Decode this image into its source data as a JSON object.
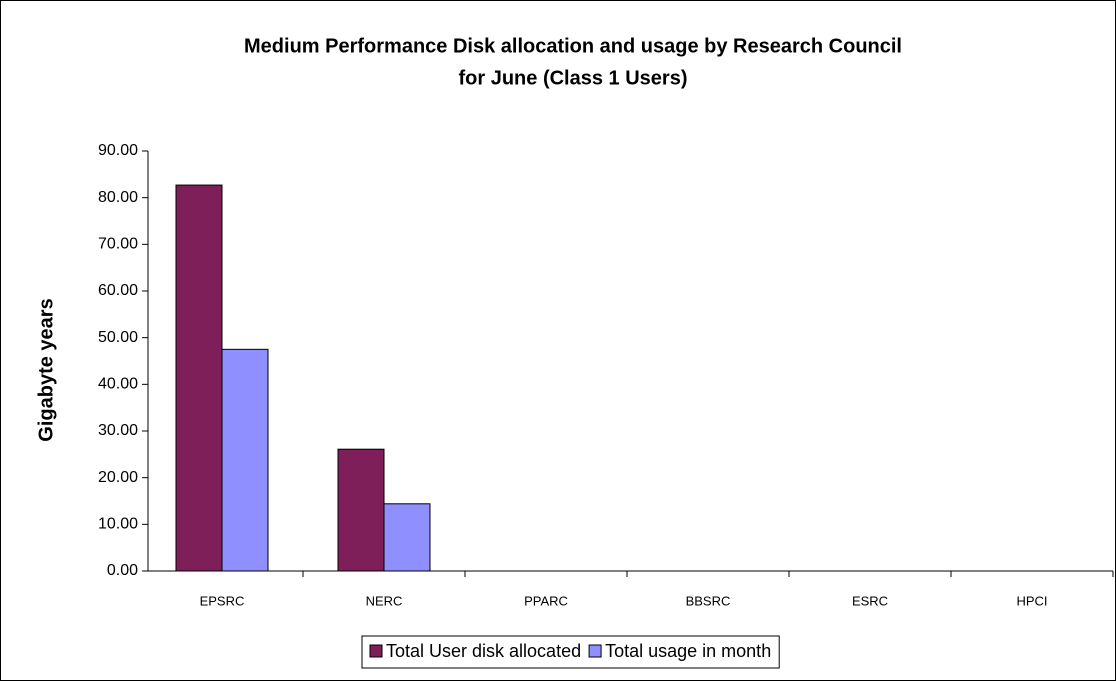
{
  "chart_data": {
    "type": "bar",
    "title": [
      "Medium Performance Disk allocation and usage by Research Council",
      "for June (Class 1 Users)"
    ],
    "y_label": "Gigabyte years",
    "categories": [
      "EPSRC",
      "NERC",
      "PPARC",
      "BBSRC",
      "ESRC",
      "HPCI"
    ],
    "series": [
      {
        "name": "Total User disk allocated",
        "color": "#7f1f5a",
        "values": [
          82.7,
          26.1,
          0,
          0,
          0,
          0
        ]
      },
      {
        "name": "Total usage in month",
        "color": "#8f8fff",
        "values": [
          47.5,
          14.4,
          0,
          0,
          0,
          0
        ]
      }
    ],
    "ylim": [
      0,
      90
    ],
    "yticks": [
      {
        "value": 0,
        "label": "0.00"
      },
      {
        "value": 10,
        "label": "10.00"
      },
      {
        "value": 20,
        "label": "20.00"
      },
      {
        "value": 30,
        "label": "30.00"
      },
      {
        "value": 40,
        "label": "40.00"
      },
      {
        "value": 50,
        "label": "50.00"
      },
      {
        "value": 60,
        "label": "60.00"
      },
      {
        "value": 70,
        "label": "70.00"
      },
      {
        "value": 80,
        "label": "80.00"
      },
      {
        "value": 90,
        "label": "90.00"
      }
    ],
    "legend": "bottom"
  }
}
